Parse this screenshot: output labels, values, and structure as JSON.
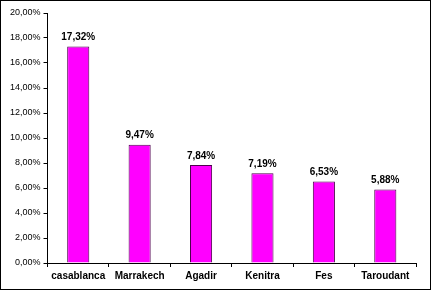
{
  "chart_data": {
    "type": "bar",
    "categories": [
      "casablanca",
      "Marrakech",
      "Agadir",
      "Kenitra",
      "Fes",
      "Taroudant"
    ],
    "values": [
      17.32,
      9.47,
      7.84,
      7.19,
      6.53,
      5.88
    ],
    "value_labels": [
      "17,32%",
      "9,47%",
      "7,84%",
      "7,19%",
      "6,53%",
      "5,88%"
    ],
    "data_labels": true,
    "color": "#ff00ff",
    "ylim": [
      0,
      20
    ],
    "yticks": [
      {
        "value": 0,
        "label": "0,00%"
      },
      {
        "value": 2,
        "label": "2,00%"
      },
      {
        "value": 4,
        "label": "4,00%"
      },
      {
        "value": 6,
        "label": "6,00%"
      },
      {
        "value": 8,
        "label": "8,00%"
      },
      {
        "value": 10,
        "label": "10,00%"
      },
      {
        "value": 12,
        "label": "12,00%"
      },
      {
        "value": 14,
        "label": "14,00%"
      },
      {
        "value": 16,
        "label": "16,00%"
      },
      {
        "value": 18,
        "label": "18,00%"
      },
      {
        "value": 20,
        "label": "20,00%"
      }
    ],
    "grid": false
  }
}
